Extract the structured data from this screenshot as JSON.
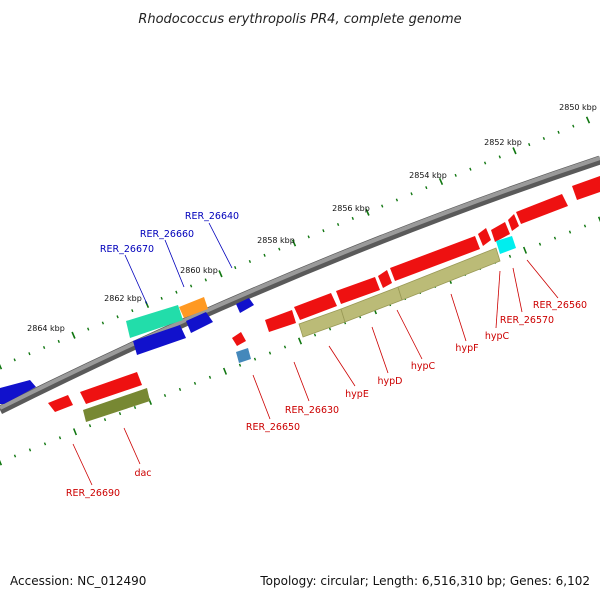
{
  "title": "Rhodococcus erythropolis PR4, complete genome",
  "ticks": [
    "2850 kbp",
    "2852 kbp",
    "2854 kbp",
    "2856 kbp",
    "2858 kbp",
    "2860 kbp",
    "2862 kbp",
    "2864 kbp"
  ],
  "colors": {
    "forward_gene": "#ee1111",
    "reverse_gene": "#1111cc",
    "rna_green": "#22ddaa",
    "rna_orange": "#ff9922",
    "cds_olive": "#bbbb77",
    "cds_dark_olive": "#778833",
    "cds_cyan": "#00eeee",
    "cds_steel": "#4488bb",
    "backbone": "#888888",
    "tick": "#117711",
    "label_blue": "#0000bb",
    "label_red": "#cc0000"
  },
  "upper_labels": [
    "RER_26640",
    "RER_26660",
    "RER_26670"
  ],
  "lower_labels": [
    "RER_26560",
    "RER_26570",
    "hypC",
    "hypF",
    "hypC",
    "hypD",
    "hypE",
    "RER_26630",
    "RER_26650",
    "dac",
    "RER_26690"
  ],
  "footer": {
    "accession": "Accession: NC_012490",
    "summary": "Topology: circular; Length: 6,516,310 bp; Genes: 6,102"
  }
}
